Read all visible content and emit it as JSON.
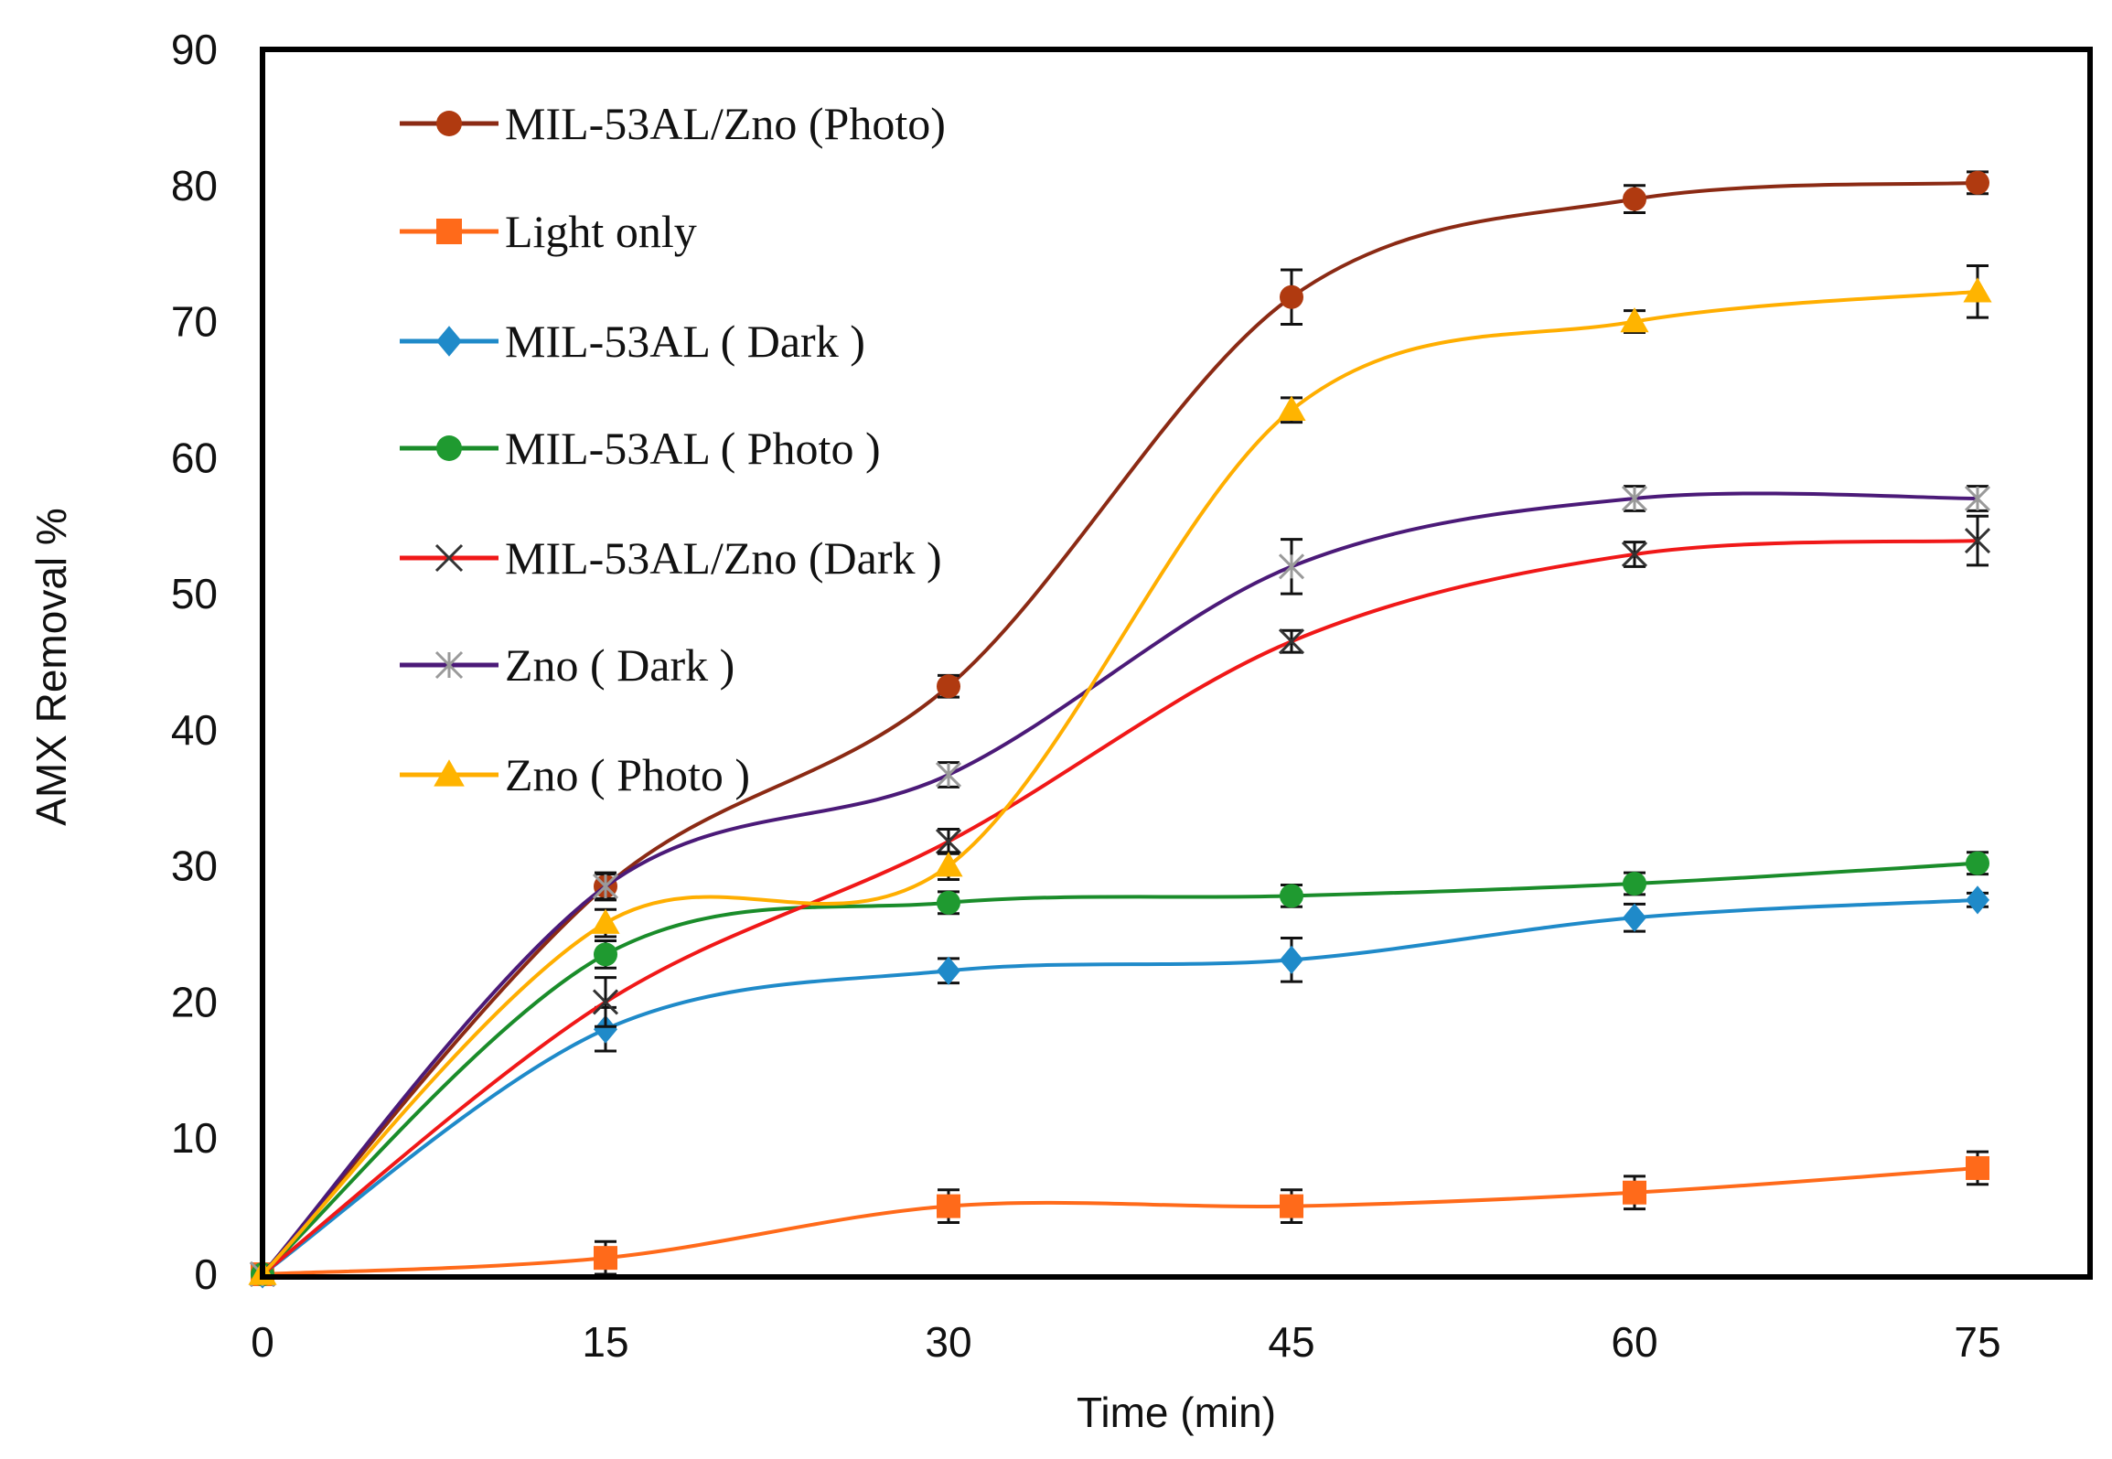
{
  "chart_data": {
    "type": "line",
    "title": "",
    "xlabel": "Time (min)",
    "ylabel": "AMX Removal %",
    "xlim": [
      0,
      75
    ],
    "ylim": [
      0,
      90
    ],
    "x_ticks": [
      0,
      15,
      30,
      45,
      60,
      75
    ],
    "y_ticks": [
      0,
      10,
      20,
      30,
      40,
      50,
      60,
      70,
      80,
      90
    ],
    "grid": false,
    "legend_position": "top-left",
    "x": [
      0,
      15,
      30,
      45,
      60,
      75
    ],
    "series": [
      {
        "name": "MIL-53AL/Zno (Photo)",
        "color": "#8B2A14",
        "marker": "circle",
        "marker_color": "#B03A10",
        "values": [
          0,
          28.5,
          43.2,
          71.8,
          79.0,
          80.2
        ],
        "errors": [
          0,
          1.0,
          0.8,
          2.0,
          1.0,
          0.8
        ]
      },
      {
        "name": "Light only",
        "color": "#FF6A1A",
        "marker": "square",
        "marker_color": "#FF6A1A",
        "values": [
          0,
          1.2,
          5.0,
          5.0,
          6.0,
          7.8
        ],
        "errors": [
          0,
          1.2,
          1.2,
          1.2,
          1.2,
          1.2
        ]
      },
      {
        "name": "MIL-53AL ( Dark )",
        "color": "#1F8AC9",
        "marker": "diamond",
        "marker_color": "#1F8AC9",
        "values": [
          0,
          18.0,
          22.3,
          23.1,
          26.2,
          27.5
        ],
        "errors": [
          0,
          1.6,
          0.9,
          1.6,
          1.0,
          0.5
        ]
      },
      {
        "name": "MIL-53AL ( Photo )",
        "color": "#1A8C2A",
        "marker": "circle",
        "marker_color": "#1F9A30",
        "values": [
          0,
          23.5,
          27.3,
          27.8,
          28.7,
          30.2
        ],
        "errors": [
          0,
          1.0,
          0.8,
          0.8,
          0.8,
          0.8
        ]
      },
      {
        "name": "MIL-53AL/Zno (Dark )",
        "color": "#F01818",
        "marker": "x",
        "marker_color": "#333333",
        "values": [
          0,
          20.0,
          31.8,
          46.5,
          52.9,
          53.9
        ],
        "errors": [
          0,
          1.8,
          0.9,
          0.8,
          0.9,
          1.8
        ]
      },
      {
        "name": "Zno ( Dark )",
        "color": "#4B1A78",
        "marker": "star",
        "marker_color": "#9A9A9A",
        "values": [
          0,
          28.5,
          36.7,
          52.0,
          57.0,
          57.0
        ],
        "errors": [
          0,
          0.9,
          0.9,
          2.0,
          0.9,
          0.9
        ]
      },
      {
        "name": "Zno ( Photo )",
        "color": "#FFAE00",
        "marker": "triangle",
        "marker_color": "#FFB400",
        "values": [
          0,
          25.8,
          30.0,
          63.5,
          70.0,
          72.2
        ],
        "errors": [
          0,
          1.0,
          1.0,
          0.9,
          0.8,
          1.9
        ]
      }
    ]
  }
}
